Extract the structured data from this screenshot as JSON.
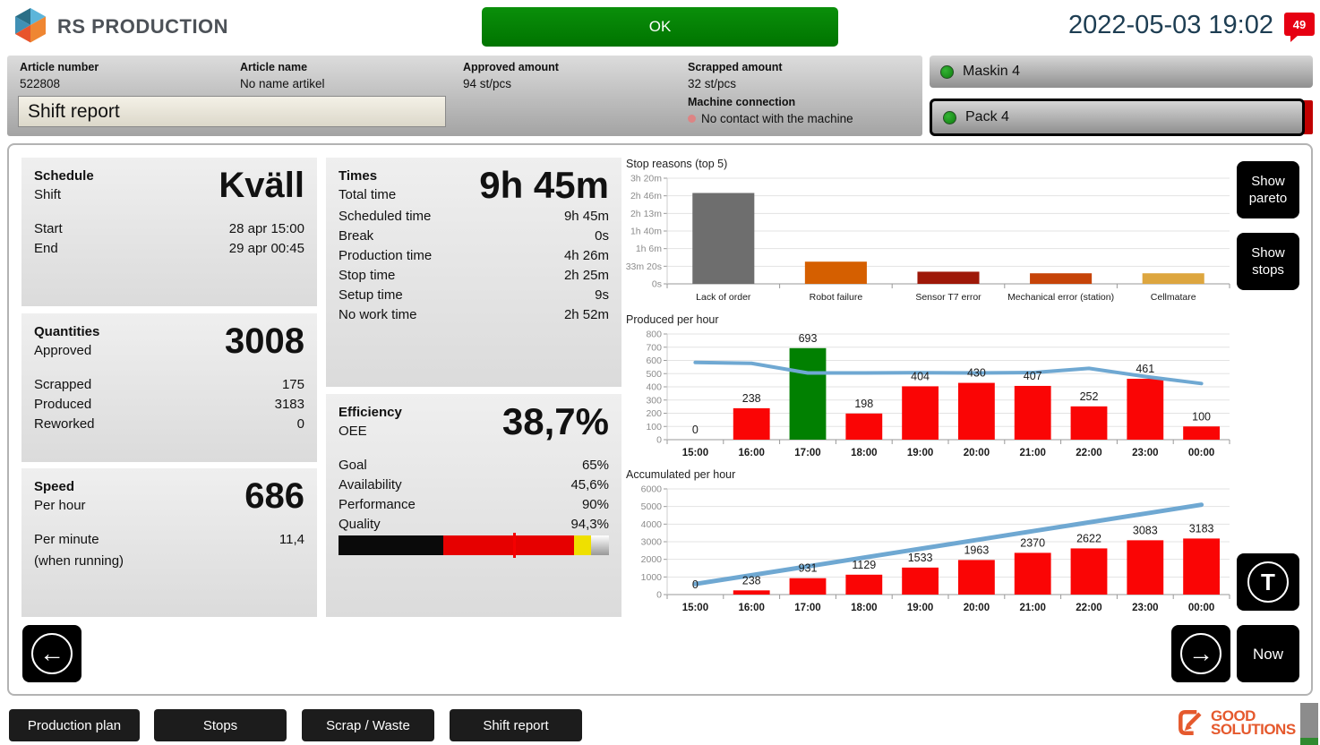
{
  "header": {
    "brand": "RS PRODUCTION",
    "status_button": "OK",
    "datetime": "2022-05-03 19:02",
    "badge_count": "49"
  },
  "article_bar": {
    "article_number_label": "Article number",
    "article_number": "522808",
    "article_name_label": "Article name",
    "article_name": "No name artikel",
    "approved_label": "Approved amount",
    "approved_value": "94 st/pcs",
    "scrapped_label": "Scrapped amount",
    "scrapped_value": "32 st/pcs",
    "machine_connection_label": "Machine connection",
    "machine_connection_status": "No contact with the machine",
    "view_title": "Shift report"
  },
  "machines": [
    {
      "name": "Maskin 4",
      "selected": false
    },
    {
      "name": "Pack 4",
      "selected": true
    }
  ],
  "panels": {
    "schedule": {
      "title": "Schedule",
      "subtitle": "Shift",
      "big_value": "Kväll",
      "rows": [
        {
          "label": "Start",
          "value": "28 apr 15:00"
        },
        {
          "label": "End",
          "value": "29 apr 00:45"
        }
      ]
    },
    "quantities": {
      "title": "Quantities",
      "subtitle": "Approved",
      "big_value": "3008",
      "rows": [
        {
          "label": "Scrapped",
          "value": "175"
        },
        {
          "label": "Produced",
          "value": "3183"
        },
        {
          "label": "Reworked",
          "value": "0"
        }
      ]
    },
    "speed": {
      "title": "Speed",
      "subtitle": "Per hour",
      "big_value": "686",
      "rows": [
        {
          "label": "Per minute",
          "value": "11,4"
        },
        {
          "label": "(when running)",
          "value": ""
        }
      ]
    },
    "times": {
      "title": "Times",
      "subtitle": "Total time",
      "big_value": "9h 45m",
      "rows": [
        {
          "label": "Scheduled time",
          "value": "9h 45m"
        },
        {
          "label": "Break",
          "value": "0s"
        },
        {
          "label": "Production time",
          "value": "4h 26m"
        },
        {
          "label": "Stop time",
          "value": "2h 25m"
        },
        {
          "label": "Setup time",
          "value": "9s"
        },
        {
          "label": "No work time",
          "value": "2h 52m"
        }
      ]
    },
    "efficiency": {
      "title": "Efficiency",
      "subtitle": "OEE",
      "big_value": "38,7%",
      "rows": [
        {
          "label": "Goal",
          "value": "65%"
        },
        {
          "label": "Availability",
          "value": "45,6%"
        },
        {
          "label": "Performance",
          "value": "90%"
        },
        {
          "label": "Quality",
          "value": "94,3%"
        }
      ],
      "bar": {
        "oee_pct": 38.7,
        "goal_pct": 65,
        "segments": [
          {
            "to": 38.7,
            "color": "#0a0a0a"
          },
          {
            "to": 87,
            "color": "#e60000"
          },
          {
            "to": 93.5,
            "color": "#efe000"
          },
          {
            "to": 100,
            "color": "#ffffff",
            "fade_to": "#999999"
          }
        ]
      }
    }
  },
  "side_buttons": {
    "show_pareto": "Show pareto",
    "show_stops": "Show stops",
    "t_glyph": "T",
    "prev_glyph": "←",
    "next_glyph": "→",
    "now": "Now"
  },
  "footer": {
    "tabs": [
      {
        "label": "Production plan"
      },
      {
        "label": "Stops"
      },
      {
        "label": "Scrap / Waste"
      },
      {
        "label": "Shift report"
      }
    ],
    "logo_line1": "GOOD",
    "logo_line2": "SOLUTIONS"
  },
  "chart_data": [
    {
      "type": "bar",
      "title": "Stop reasons (top 5)",
      "categories": [
        "Lack of order",
        "Robot failure",
        "Sensor T7 error",
        "Mechanical error (station)",
        "Cellmatare"
      ],
      "values": [
        10320,
        2520,
        1380,
        1200,
        1200
      ],
      "unit": "seconds",
      "bar_colors": [
        "#6e6e6e",
        "#d55f00",
        "#9e1808",
        "#c64409",
        "#dda63f"
      ],
      "ymax": 12000,
      "yticks": [
        {
          "v": 0,
          "label": "0s"
        },
        {
          "v": 2000,
          "label": "33m 20s"
        },
        {
          "v": 4000,
          "label": "1h 6m"
        },
        {
          "v": 6000,
          "label": "1h 40m"
        },
        {
          "v": 8000,
          "label": "2h 13m"
        },
        {
          "v": 10000,
          "label": "2h 46m"
        },
        {
          "v": 12000,
          "label": "3h 20m"
        }
      ],
      "value_labels": false,
      "x_bold": false,
      "x_font": 10.5,
      "bar_width": 0.55,
      "grid": true,
      "legend": "none"
    },
    {
      "type": "bar+line",
      "title": "Produced per hour",
      "categories": [
        "15:00",
        "16:00",
        "17:00",
        "18:00",
        "19:00",
        "20:00",
        "21:00",
        "22:00",
        "23:00",
        "00:00"
      ],
      "values": [
        0,
        238,
        693,
        198,
        404,
        430,
        407,
        252,
        461,
        100
      ],
      "bar_colors": [
        "#fa0505",
        "#fa0505",
        "#018001",
        "#fa0505",
        "#fa0505",
        "#fa0505",
        "#fa0505",
        "#fa0505",
        "#fa0505",
        "#fa0505"
      ],
      "line": {
        "name": "target-rate",
        "color": "#6fa8d2",
        "width": 4,
        "values": [
          585,
          578,
          505,
          505,
          507,
          505,
          508,
          540,
          478,
          425
        ]
      },
      "ymax": 800,
      "yticks": [
        {
          "v": 0,
          "label": "0"
        },
        {
          "v": 100,
          "label": "100"
        },
        {
          "v": 200,
          "label": "200"
        },
        {
          "v": 300,
          "label": "300"
        },
        {
          "v": 400,
          "label": "400"
        },
        {
          "v": 500,
          "label": "500"
        },
        {
          "v": 600,
          "label": "600"
        },
        {
          "v": 700,
          "label": "700"
        },
        {
          "v": 800,
          "label": "800"
        }
      ],
      "value_labels": true,
      "x_bold": true,
      "x_font": 11.5,
      "bar_width": 0.65,
      "grid": true,
      "legend": "none"
    },
    {
      "type": "bar+line",
      "title": "Accumulated per hour",
      "categories": [
        "15:00",
        "16:00",
        "17:00",
        "18:00",
        "19:00",
        "20:00",
        "21:00",
        "22:00",
        "23:00",
        "00:00"
      ],
      "values": [
        0,
        238,
        931,
        1129,
        1533,
        1963,
        2370,
        2622,
        3083,
        3183
      ],
      "bar_colors": [
        "#fa0505",
        "#fa0505",
        "#fa0505",
        "#fa0505",
        "#fa0505",
        "#fa0505",
        "#fa0505",
        "#fa0505",
        "#fa0505",
        "#fa0505"
      ],
      "line": {
        "name": "target-accumulated",
        "color": "#6fa8d2",
        "width": 5,
        "values": [
          600,
          1100,
          1600,
          2100,
          2600,
          3100,
          3600,
          4100,
          4600,
          5100
        ]
      },
      "ymax": 6000,
      "yticks": [
        {
          "v": 0,
          "label": "0"
        },
        {
          "v": 1000,
          "label": "1000"
        },
        {
          "v": 2000,
          "label": "2000"
        },
        {
          "v": 3000,
          "label": "3000"
        },
        {
          "v": 4000,
          "label": "4000"
        },
        {
          "v": 5000,
          "label": "5000"
        },
        {
          "v": 6000,
          "label": "6000"
        }
      ],
      "value_labels": true,
      "x_bold": true,
      "x_font": 11.5,
      "bar_width": 0.65,
      "grid": true,
      "legend": "none"
    }
  ]
}
